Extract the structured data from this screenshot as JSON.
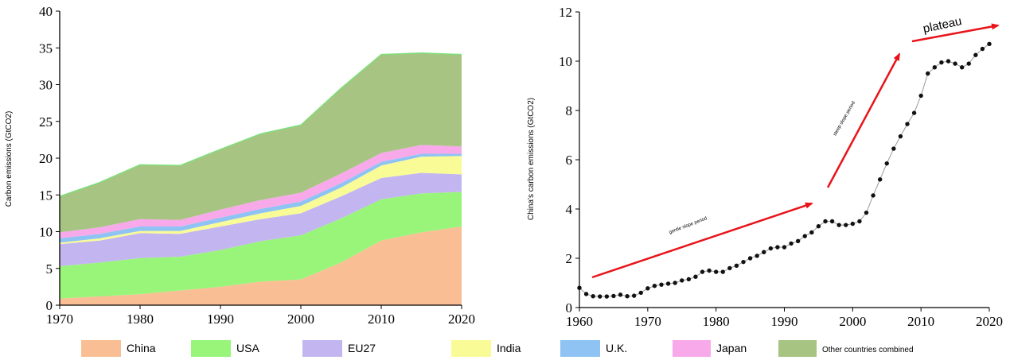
{
  "chart_data": [
    {
      "type": "area",
      "stacked": true,
      "title": "",
      "xlabel": "",
      "ylabel": "Carbon emissions (GtCO2)",
      "xlim": [
        1970,
        2020
      ],
      "ylim": [
        0,
        40
      ],
      "xticks": [
        "1970",
        "1980",
        "1990",
        "2000",
        "2010",
        "2020"
      ],
      "yticks": [
        "0",
        "5",
        "10",
        "15",
        "20",
        "25",
        "30",
        "35",
        "40"
      ],
      "x": [
        1970,
        1975,
        1980,
        1985,
        1990,
        1995,
        2000,
        2005,
        2010,
        2015,
        2020
      ],
      "series": [
        {
          "name": "China",
          "color": "#f9be93",
          "values": [
            0.9,
            1.2,
            1.5,
            2.0,
            2.5,
            3.2,
            3.5,
            5.8,
            8.8,
            9.9,
            10.7
          ]
        },
        {
          "name": "USA",
          "color": "#98f57a",
          "values": [
            4.4,
            4.6,
            4.9,
            4.6,
            5.0,
            5.5,
            6.0,
            6.0,
            5.6,
            5.3,
            4.7
          ]
        },
        {
          "name": "EU27",
          "color": "#c3b6f0",
          "values": [
            3.0,
            3.0,
            3.4,
            3.1,
            3.2,
            3.0,
            3.0,
            3.0,
            2.9,
            2.8,
            2.4
          ]
        },
        {
          "name": "India",
          "color": "#f9fb97",
          "values": [
            0.2,
            0.3,
            0.3,
            0.4,
            0.6,
            0.8,
            1.0,
            1.2,
            1.7,
            2.2,
            2.5
          ]
        },
        {
          "name": "U.K.",
          "color": "#8ec3f3",
          "values": [
            0.6,
            0.6,
            0.6,
            0.6,
            0.6,
            0.6,
            0.6,
            0.6,
            0.5,
            0.4,
            0.3
          ]
        },
        {
          "name": "Japan",
          "color": "#f7a9ea",
          "values": [
            0.8,
            0.9,
            1.0,
            0.9,
            1.1,
            1.2,
            1.2,
            1.3,
            1.2,
            1.2,
            1.0
          ]
        },
        {
          "name": "Other countries combined",
          "color": "#a7c483",
          "values": [
            4.9,
            6.1,
            7.4,
            7.4,
            8.2,
            9.0,
            9.2,
            11.6,
            13.4,
            12.5,
            12.5
          ]
        }
      ],
      "legend": [
        "China",
        "USA",
        "EU27",
        "India",
        "U.K.",
        "Japan",
        "Other countries combined"
      ],
      "legend_placement": "bottom"
    },
    {
      "type": "line",
      "title": "",
      "xlabel": "",
      "ylabel": "China's carbon emissions (GtCO2)",
      "xlim": [
        1960,
        2020
      ],
      "ylim": [
        0,
        12
      ],
      "xticks": [
        "1960",
        "1970",
        "1980",
        "1990",
        "2000",
        "2010",
        "2020"
      ],
      "yticks": [
        "0",
        "2",
        "4",
        "6",
        "8",
        "10",
        "12"
      ],
      "x": [
        1960,
        1961,
        1962,
        1963,
        1964,
        1965,
        1966,
        1967,
        1968,
        1969,
        1970,
        1971,
        1972,
        1973,
        1974,
        1975,
        1976,
        1977,
        1978,
        1979,
        1980,
        1981,
        1982,
        1983,
        1984,
        1985,
        1986,
        1987,
        1988,
        1989,
        1990,
        1991,
        1992,
        1993,
        1994,
        1995,
        1996,
        1997,
        1998,
        1999,
        2000,
        2001,
        2002,
        2003,
        2004,
        2005,
        2006,
        2007,
        2008,
        2009,
        2010,
        2011,
        2012,
        2013,
        2014,
        2015,
        2016,
        2017,
        2018,
        2019,
        2020
      ],
      "values": [
        0.8,
        0.55,
        0.46,
        0.45,
        0.45,
        0.47,
        0.52,
        0.46,
        0.48,
        0.6,
        0.78,
        0.88,
        0.93,
        0.97,
        1.0,
        1.1,
        1.15,
        1.25,
        1.45,
        1.5,
        1.45,
        1.45,
        1.6,
        1.7,
        1.85,
        2.0,
        2.1,
        2.25,
        2.4,
        2.45,
        2.45,
        2.6,
        2.7,
        2.9,
        3.05,
        3.3,
        3.5,
        3.5,
        3.35,
        3.35,
        3.4,
        3.5,
        3.85,
        4.55,
        5.2,
        5.85,
        6.45,
        6.95,
        7.45,
        7.9,
        8.6,
        9.5,
        9.75,
        9.95,
        10.0,
        9.9,
        9.75,
        9.9,
        10.25,
        10.5,
        10.7
      ],
      "annotations": [
        {
          "text": "gentle slope period",
          "size": "small"
        },
        {
          "text": "steep slope period",
          "size": "small"
        },
        {
          "text": "plateau",
          "size": "large"
        }
      ]
    }
  ]
}
